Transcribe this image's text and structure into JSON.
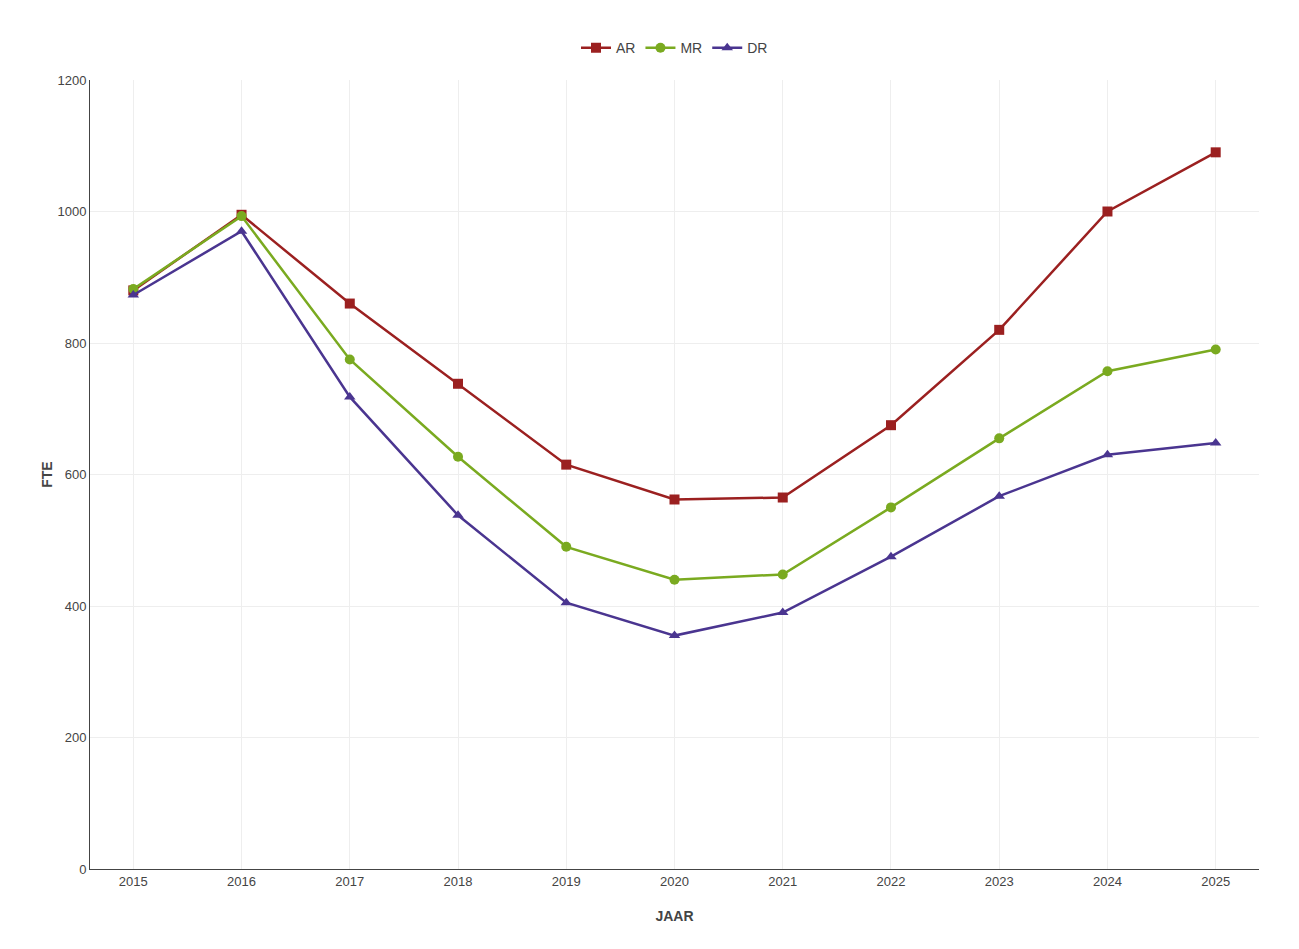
{
  "chart_data": {
    "type": "line",
    "x": [
      2015,
      2016,
      2017,
      2018,
      2019,
      2020,
      2021,
      2022,
      2023,
      2024,
      2025
    ],
    "series": [
      {
        "name": "AR",
        "color": "#9b2020",
        "marker": "square",
        "values": [
          880,
          995,
          860,
          738,
          615,
          562,
          565,
          675,
          820,
          1000,
          1090
        ]
      },
      {
        "name": "MR",
        "color": "#7aaa20",
        "marker": "circle",
        "values": [
          882,
          993,
          775,
          627,
          490,
          440,
          448,
          550,
          655,
          757,
          790
        ]
      },
      {
        "name": "DR",
        "color": "#4a3590",
        "marker": "triangle-up",
        "values": [
          873,
          970,
          718,
          538,
          405,
          355,
          390,
          475,
          567,
          630,
          648
        ]
      }
    ],
    "xlabel": "JAAR",
    "ylabel": "FTE",
    "xlim": [
      2014.6,
      2025.4
    ],
    "xticks": [
      2015,
      2016,
      2017,
      2018,
      2019,
      2020,
      2021,
      2022,
      2023,
      2024,
      2025
    ],
    "ylim": [
      0,
      1200
    ],
    "yticks": [
      0,
      200,
      400,
      600,
      800,
      1000,
      1200
    ],
    "grid": true,
    "legend": "top"
  }
}
